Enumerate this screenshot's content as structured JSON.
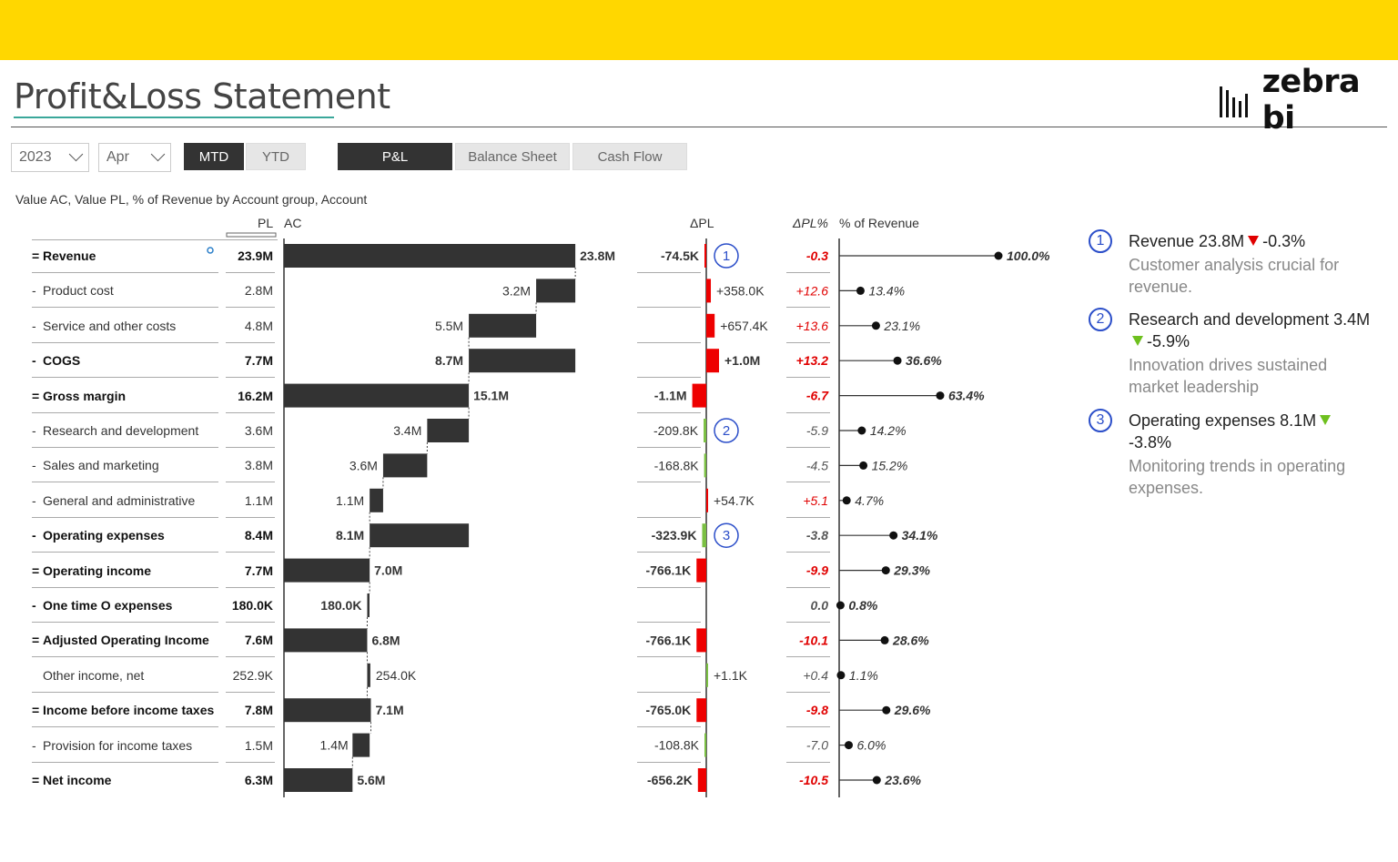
{
  "header": {
    "title": "Profit&Loss Statement",
    "logo_text": "zebra bi"
  },
  "filters": {
    "year": "2023",
    "month": "Apr",
    "period_buttons": [
      "MTD",
      "YTD"
    ],
    "active_period": "MTD",
    "report_tabs": [
      "P&L",
      "Balance Sheet",
      "Cash Flow"
    ],
    "active_tab": "P&L"
  },
  "table": {
    "subtitle": "Value AC, Value PL, % of Revenue by Account group, Account",
    "col_pl": "PL",
    "col_ac": "AC",
    "col_dpl": "ΔPL",
    "col_dplpct": "ΔPL%",
    "col_rev": "% of Revenue"
  },
  "chart_data": {
    "type": "table",
    "rows": [
      {
        "prefix": "=",
        "label": "Revenue",
        "bold": true,
        "pl": "23.9M",
        "ac_label": "23.8M",
        "ac": 23.8,
        "dpl_label": "-74.5K",
        "dpl": -74.5,
        "dplpct_label": "-0.3",
        "dplpct": -0.3,
        "rev_label": "100.0%",
        "rev": 100.0,
        "note": "1"
      },
      {
        "prefix": "-",
        "label": "Product cost",
        "bold": false,
        "pl": "2.8M",
        "ac_label": "3.2M",
        "ac": 3.2,
        "dpl_label": "+358.0K",
        "dpl": 358.0,
        "dplpct_label": "+12.6",
        "dplpct": 12.6,
        "rev_label": "13.4%",
        "rev": 13.4
      },
      {
        "prefix": "-",
        "label": "Service and other costs",
        "bold": false,
        "pl": "4.8M",
        "ac_label": "5.5M",
        "ac": 5.5,
        "dpl_label": "+657.4K",
        "dpl": 657.4,
        "dplpct_label": "+13.6",
        "dplpct": 13.6,
        "rev_label": "23.1%",
        "rev": 23.1
      },
      {
        "prefix": "-",
        "label": "COGS",
        "bold": true,
        "pl": "7.7M",
        "ac_label": "8.7M",
        "ac": 8.7,
        "dpl_label": "+1.0M",
        "dpl": 1000.0,
        "dplpct_label": "+13.2",
        "dplpct": 13.2,
        "rev_label": "36.6%",
        "rev": 36.6
      },
      {
        "prefix": "=",
        "label": "Gross margin",
        "bold": true,
        "pl": "16.2M",
        "ac_label": "15.1M",
        "ac": 15.1,
        "dpl_label": "-1.1M",
        "dpl": -1100.0,
        "dplpct_label": "-6.7",
        "dplpct": -6.7,
        "rev_label": "63.4%",
        "rev": 63.4
      },
      {
        "prefix": "-",
        "label": "Research and development",
        "bold": false,
        "pl": "3.6M",
        "ac_label": "3.4M",
        "ac": 3.4,
        "dpl_label": "-209.8K",
        "dpl": -209.8,
        "dplpct_label": "-5.9",
        "dplpct": -5.9,
        "rev_label": "14.2%",
        "rev": 14.2,
        "note": "2"
      },
      {
        "prefix": "-",
        "label": "Sales and marketing",
        "bold": false,
        "pl": "3.8M",
        "ac_label": "3.6M",
        "ac": 3.6,
        "dpl_label": "-168.8K",
        "dpl": -168.8,
        "dplpct_label": "-4.5",
        "dplpct": -4.5,
        "rev_label": "15.2%",
        "rev": 15.2
      },
      {
        "prefix": "-",
        "label": "General and administrative",
        "bold": false,
        "pl": "1.1M",
        "ac_label": "1.1M",
        "ac": 1.1,
        "dpl_label": "+54.7K",
        "dpl": 54.7,
        "dplpct_label": "+5.1",
        "dplpct": 5.1,
        "rev_label": "4.7%",
        "rev": 4.7
      },
      {
        "prefix": "-",
        "label": "Operating expenses",
        "bold": true,
        "pl": "8.4M",
        "ac_label": "8.1M",
        "ac": 8.1,
        "dpl_label": "-323.9K",
        "dpl": -323.9,
        "dplpct_label": "-3.8",
        "dplpct": -3.8,
        "rev_label": "34.1%",
        "rev": 34.1,
        "note": "3"
      },
      {
        "prefix": "=",
        "label": "Operating income",
        "bold": true,
        "pl": "7.7M",
        "ac_label": "7.0M",
        "ac": 7.0,
        "dpl_label": "-766.1K",
        "dpl": -766.1,
        "dplpct_label": "-9.9",
        "dplpct": -9.9,
        "rev_label": "29.3%",
        "rev": 29.3
      },
      {
        "prefix": "-",
        "label": "One time O expenses",
        "bold": true,
        "pl": "180.0K",
        "ac_label": "180.0K",
        "ac": 0.18,
        "dpl_label": "",
        "dpl": 0,
        "dplpct_label": "0.0",
        "dplpct": 0.0,
        "rev_label": "0.8%",
        "rev": 0.8
      },
      {
        "prefix": "=",
        "label": "Adjusted Operating Income",
        "bold": true,
        "pl": "7.6M",
        "ac_label": "6.8M",
        "ac": 6.8,
        "dpl_label": "-766.1K",
        "dpl": -766.1,
        "dplpct_label": "-10.1",
        "dplpct": -10.1,
        "rev_label": "28.6%",
        "rev": 28.6
      },
      {
        "prefix": "",
        "label": "Other income, net",
        "bold": false,
        "pl": "252.9K",
        "ac_label": "254.0K",
        "ac": 0.254,
        "dpl_label": "+1.1K",
        "dpl": 1.1,
        "dplpct_label": "+0.4",
        "dplpct": 0.4,
        "rev_label": "1.1%",
        "rev": 1.1
      },
      {
        "prefix": "=",
        "label": "Income before income taxes",
        "bold": true,
        "pl": "7.8M",
        "ac_label": "7.1M",
        "ac": 7.1,
        "dpl_label": "-765.0K",
        "dpl": -765.0,
        "dplpct_label": "-9.8",
        "dplpct": -9.8,
        "rev_label": "29.6%",
        "rev": 29.6
      },
      {
        "prefix": "-",
        "label": "Provision for income taxes",
        "bold": false,
        "pl": "1.5M",
        "ac_label": "1.4M",
        "ac": 1.4,
        "dpl_label": "-108.8K",
        "dpl": -108.8,
        "dplpct_label": "-7.0",
        "dplpct": -7.0,
        "rev_label": "6.0%",
        "rev": 6.0
      },
      {
        "prefix": "=",
        "label": "Net income",
        "bold": true,
        "pl": "6.3M",
        "ac_label": "5.6M",
        "ac": 5.6,
        "dpl_label": "-656.2K",
        "dpl": -656.2,
        "dplpct_label": "-10.5",
        "dplpct": -10.5,
        "rev_label": "23.6%",
        "rev": 23.6
      }
    ],
    "colors": {
      "bar": "#333333",
      "bad": "#ee0000",
      "good": "#7bc043",
      "note": "#2b4ec9"
    }
  },
  "annotations": [
    {
      "num": "1",
      "head": "Revenue 23.8M",
      "delta": "-0.3%",
      "trend": "down-bad",
      "desc": "Customer analysis crucial for revenue."
    },
    {
      "num": "2",
      "head": "Research and development 3.4M",
      "delta": "-5.9%",
      "trend": "down-good",
      "desc": "Innovation drives sustained market leadership"
    },
    {
      "num": "3",
      "head": "Operating expenses 8.1M",
      "delta": "-3.8%",
      "trend": "down-good",
      "desc": "Monitoring trends in operating expenses."
    }
  ]
}
